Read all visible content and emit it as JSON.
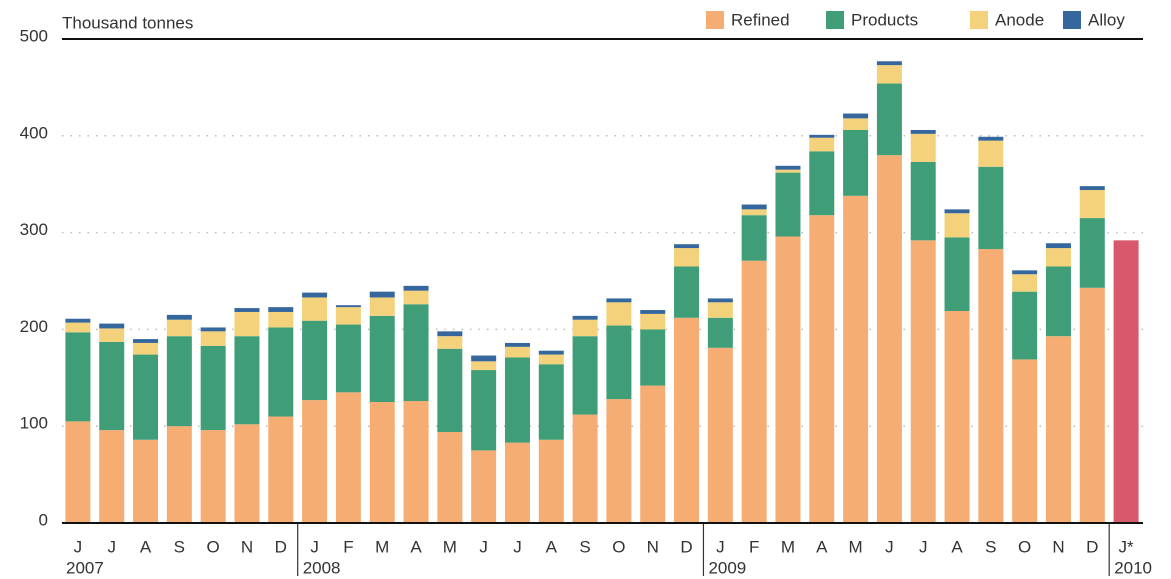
{
  "chart_data": {
    "type": "stacked_bar",
    "y_label": "Thousand tonnes",
    "categories": [
      "J",
      "J",
      "A",
      "S",
      "O",
      "N",
      "D",
      "J",
      "F",
      "M",
      "A",
      "M",
      "J",
      "J",
      "A",
      "S",
      "O",
      "N",
      "D",
      "J",
      "F",
      "M",
      "A",
      "M",
      "J",
      "J",
      "A",
      "S",
      "O",
      "N",
      "D",
      "J*"
    ],
    "x_groups": [
      "2007",
      null,
      null,
      null,
      null,
      null,
      null,
      "2008",
      null,
      null,
      null,
      null,
      null,
      null,
      null,
      null,
      null,
      null,
      null,
      "2009",
      null,
      null,
      null,
      null,
      null,
      null,
      null,
      null,
      null,
      null,
      null,
      "2010"
    ],
    "series": [
      {
        "name": "Refined",
        "color": "#f5ad73",
        "values": [
          105,
          96,
          86,
          100,
          96,
          102,
          110,
          127,
          135,
          125,
          126,
          94,
          75,
          83,
          86,
          112,
          128,
          142,
          212,
          181,
          271,
          296,
          318,
          338,
          380,
          292,
          219,
          283,
          169,
          193,
          243,
          null
        ]
      },
      {
        "name": "Products",
        "color": "#3f9e78",
        "values": [
          92,
          91,
          88,
          93,
          87,
          91,
          92,
          82,
          70,
          89,
          100,
          86,
          83,
          88,
          78,
          81,
          76,
          58,
          53,
          31,
          47,
          66,
          66,
          68,
          74,
          81,
          76,
          85,
          70,
          72,
          72,
          null
        ]
      },
      {
        "name": "Anode",
        "color": "#f4d27c",
        "values": [
          10,
          14,
          12,
          17,
          15,
          25,
          16,
          24,
          18,
          19,
          14,
          13,
          9,
          11,
          10,
          17,
          24,
          16,
          19,
          16,
          6,
          3,
          14,
          12,
          19,
          29,
          25,
          27,
          18,
          19,
          29,
          null
        ]
      },
      {
        "name": "Alloy",
        "color": "#36679c",
        "values": [
          4,
          5,
          4,
          5,
          4,
          4,
          5,
          5,
          2,
          6,
          5,
          5,
          6,
          4,
          4,
          4,
          4,
          4,
          4,
          4,
          5,
          4,
          3,
          5,
          4,
          4,
          4,
          4,
          4,
          5,
          4,
          null
        ]
      },
      {
        "color": "#d9596c",
        "values": [
          null,
          null,
          null,
          null,
          null,
          null,
          null,
          null,
          null,
          null,
          null,
          null,
          null,
          null,
          null,
          null,
          null,
          null,
          null,
          null,
          null,
          null,
          null,
          null,
          null,
          null,
          null,
          null,
          null,
          null,
          null,
          292
        ]
      }
    ],
    "ylim": [
      0,
      500
    ],
    "yticks": [
      0,
      100,
      200,
      300,
      400,
      500
    ],
    "grid": true
  }
}
